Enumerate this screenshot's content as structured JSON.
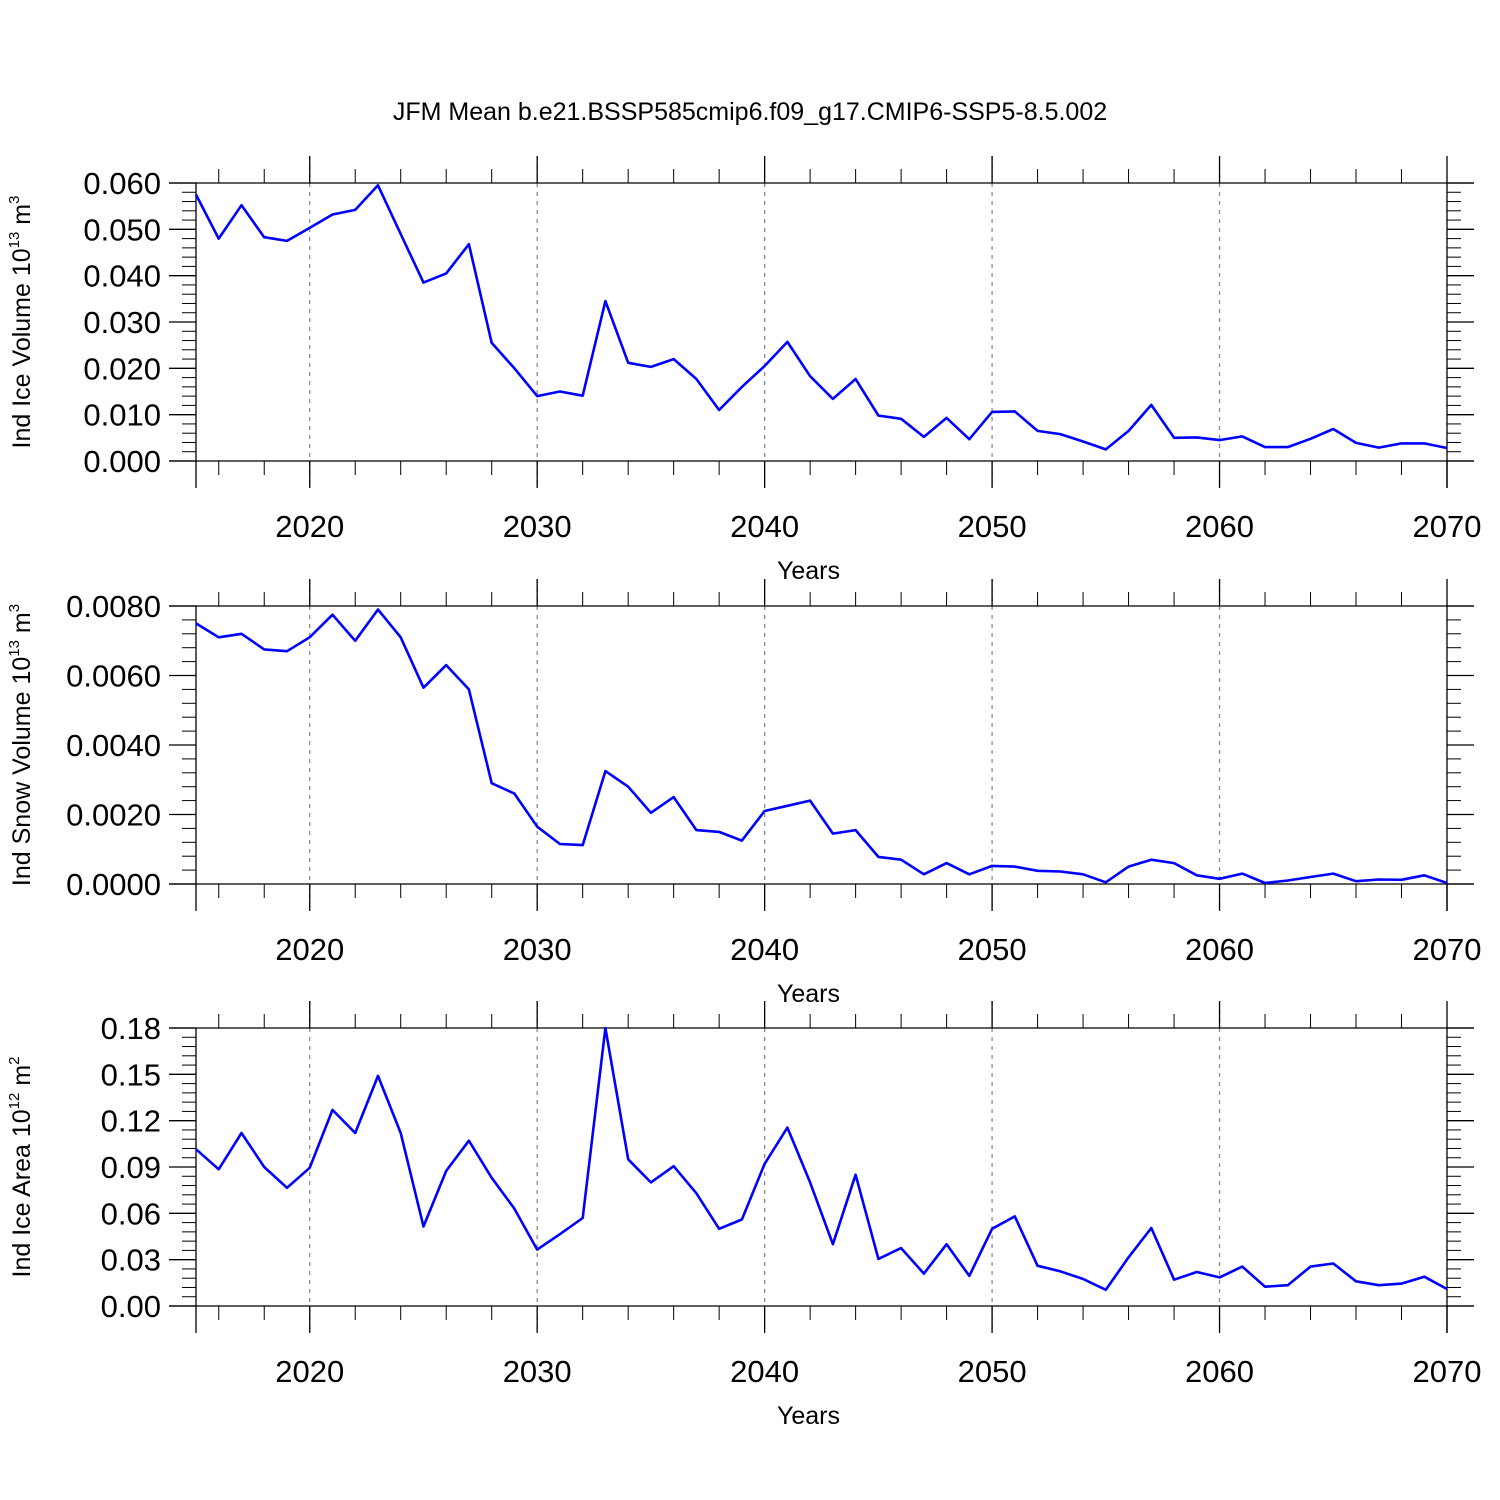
{
  "title": "JFM Mean b.e21.BSSP585cmip6.f09_g17.CMIP6-SSP5-8.5.002",
  "colors": {
    "line": "#0000ff",
    "axis": "#000000",
    "grid": "#8c8c8c"
  },
  "chart_data": [
    {
      "type": "line",
      "ylabel": {
        "main": "Ind Ice Volume 10",
        "sup": "13",
        "unit": " m",
        "unit_sup": "3"
      },
      "xlabel": "Years",
      "xlim": [
        2015,
        2070
      ],
      "ylim": [
        0,
        0.06
      ],
      "xticks": [
        2020,
        2030,
        2040,
        2050,
        2060,
        2070
      ],
      "xtick_labels": [
        "2020",
        "2030",
        "2040",
        "2050",
        "2060",
        "2070"
      ],
      "yticks": [
        0,
        0.01,
        0.02,
        0.03,
        0.04,
        0.05,
        0.06
      ],
      "ytick_labels": [
        "0.000",
        "0.010",
        "0.020",
        "0.030",
        "0.040",
        "0.050",
        "0.060"
      ],
      "grid": "vertical dashed",
      "series": [
        {
          "x": [
            2015,
            2016,
            2017,
            2018,
            2019,
            2020,
            2021,
            2022,
            2023,
            2024,
            2025,
            2026,
            2027,
            2028,
            2029,
            2030,
            2031,
            2032,
            2033,
            2034,
            2035,
            2036,
            2037,
            2038,
            2039,
            2040,
            2041,
            2042,
            2043,
            2044,
            2045,
            2046,
            2047,
            2048,
            2049,
            2050,
            2051,
            2052,
            2053,
            2054,
            2055,
            2056,
            2057,
            2058,
            2059,
            2060,
            2061,
            2062,
            2063,
            2064,
            2065,
            2066,
            2067,
            2068,
            2069,
            2070
          ],
          "values": [
            0.0575,
            0.048,
            0.0552,
            0.0483,
            0.0475,
            0.0503,
            0.0532,
            0.0542,
            0.0595,
            0.049,
            0.0385,
            0.0405,
            0.0468,
            0.0255,
            0.02,
            0.014,
            0.015,
            0.0141,
            0.0345,
            0.0212,
            0.0203,
            0.022,
            0.0177,
            0.011,
            0.016,
            0.0205,
            0.0257,
            0.0183,
            0.0134,
            0.0177,
            0.0098,
            0.0091,
            0.0052,
            0.0093,
            0.0047,
            0.0106,
            0.0107,
            0.0065,
            0.0058,
            0.0042,
            0.0025,
            0.0065,
            0.0121,
            0.005,
            0.0051,
            0.0045,
            0.0053,
            0.003,
            0.003,
            0.0048,
            0.0069,
            0.0039,
            0.0029,
            0.0038,
            0.0038,
            0.0028
          ]
        }
      ]
    },
    {
      "type": "line",
      "ylabel": {
        "main": "Ind Snow Volume 10",
        "sup": "13",
        "unit": " m",
        "unit_sup": "3"
      },
      "xlabel": "Years",
      "xlim": [
        2015,
        2070
      ],
      "ylim": [
        0,
        0.008
      ],
      "xticks": [
        2020,
        2030,
        2040,
        2050,
        2060,
        2070
      ],
      "xtick_labels": [
        "2020",
        "2030",
        "2040",
        "2050",
        "2060",
        "2070"
      ],
      "yticks": [
        0,
        0.002,
        0.004,
        0.006,
        0.008
      ],
      "ytick_labels": [
        "0.0000",
        "0.0020",
        "0.0040",
        "0.0060",
        "0.0080"
      ],
      "grid": "vertical dashed",
      "series": [
        {
          "x": [
            2015,
            2016,
            2017,
            2018,
            2019,
            2020,
            2021,
            2022,
            2023,
            2024,
            2025,
            2026,
            2027,
            2028,
            2029,
            2030,
            2031,
            2032,
            2033,
            2034,
            2035,
            2036,
            2037,
            2038,
            2039,
            2040,
            2041,
            2042,
            2043,
            2044,
            2045,
            2046,
            2047,
            2048,
            2049,
            2050,
            2051,
            2052,
            2053,
            2054,
            2055,
            2056,
            2057,
            2058,
            2059,
            2060,
            2061,
            2062,
            2063,
            2064,
            2065,
            2066,
            2067,
            2068,
            2069,
            2070
          ],
          "values": [
            0.0075,
            0.0071,
            0.0072,
            0.00675,
            0.0067,
            0.0071,
            0.00775,
            0.007,
            0.0079,
            0.0071,
            0.00565,
            0.0063,
            0.0056,
            0.0029,
            0.0026,
            0.00165,
            0.00115,
            0.00112,
            0.00325,
            0.0028,
            0.00205,
            0.0025,
            0.00155,
            0.0015,
            0.00125,
            0.0021,
            0.00225,
            0.0024,
            0.00145,
            0.00155,
            0.00078,
            0.0007,
            0.00028,
            0.0006,
            0.00028,
            0.00052,
            0.0005,
            0.00038,
            0.00036,
            0.00028,
            5e-05,
            0.0005,
            0.0007,
            0.0006,
            0.00025,
            0.00015,
            0.0003,
            3e-05,
            0.0001,
            0.0002,
            0.0003,
            8e-05,
            0.00013,
            0.00012,
            0.00025,
            3e-05
          ]
        }
      ]
    },
    {
      "type": "line",
      "ylabel": {
        "main": "Ind Ice Area 10",
        "sup": "12",
        "unit": " m",
        "unit_sup": "2"
      },
      "xlabel": "Years",
      "xlim": [
        2015,
        2070
      ],
      "ylim": [
        0,
        0.18
      ],
      "xticks": [
        2020,
        2030,
        2040,
        2050,
        2060,
        2070
      ],
      "xtick_labels": [
        "2020",
        "2030",
        "2040",
        "2050",
        "2060",
        "2070"
      ],
      "yticks": [
        0,
        0.03,
        0.06,
        0.09,
        0.12,
        0.15,
        0.18
      ],
      "ytick_labels": [
        "0.00",
        "0.03",
        "0.06",
        "0.09",
        "0.12",
        "0.15",
        "0.18"
      ],
      "grid": "vertical dashed",
      "series": [
        {
          "x": [
            2015,
            2016,
            2017,
            2018,
            2019,
            2020,
            2021,
            2022,
            2023,
            2024,
            2025,
            2026,
            2027,
            2028,
            2029,
            2030,
            2031,
            2032,
            2033,
            2034,
            2035,
            2036,
            2037,
            2038,
            2039,
            2040,
            2041,
            2042,
            2043,
            2044,
            2045,
            2046,
            2047,
            2048,
            2049,
            2050,
            2051,
            2052,
            2053,
            2054,
            2055,
            2056,
            2057,
            2058,
            2059,
            2060,
            2061,
            2062,
            2063,
            2064,
            2065,
            2066,
            2067,
            2068,
            2069,
            2070
          ],
          "values": [
            0.1015,
            0.0885,
            0.112,
            0.09,
            0.0765,
            0.0895,
            0.127,
            0.112,
            0.149,
            0.112,
            0.0515,
            0.0875,
            0.107,
            0.083,
            0.063,
            0.0365,
            0.0465,
            0.057,
            0.18,
            0.095,
            0.08,
            0.0905,
            0.073,
            0.05,
            0.056,
            0.092,
            0.1155,
            0.08,
            0.04,
            0.085,
            0.0305,
            0.0375,
            0.021,
            0.04,
            0.0195,
            0.05,
            0.058,
            0.026,
            0.0225,
            0.0175,
            0.0105,
            0.0315,
            0.0505,
            0.017,
            0.022,
            0.0185,
            0.0255,
            0.0125,
            0.0135,
            0.0255,
            0.0275,
            0.016,
            0.0135,
            0.0145,
            0.019,
            0.011
          ]
        }
      ]
    }
  ]
}
